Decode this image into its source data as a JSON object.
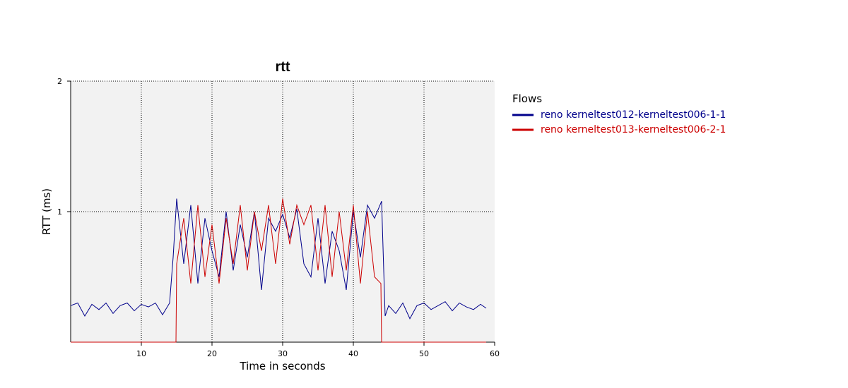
{
  "chart_data": {
    "type": "line",
    "title": "rtt",
    "xlabel": "Time in seconds",
    "ylabel": "RTT (ms)",
    "xlim": [
      0,
      60
    ],
    "ylim": [
      0,
      2
    ],
    "x_ticks": [
      "10",
      "20",
      "30",
      "40",
      "50",
      "60"
    ],
    "y_ticks": [
      "1",
      "2"
    ],
    "grid": true,
    "legend_title": "Flows",
    "legend_position": "right",
    "series": [
      {
        "name": "reno kerneltest012-kerneltest006-1-1",
        "color": "#00008b",
        "x": [
          0.0,
          1.0,
          2.0,
          3.0,
          4.0,
          5.0,
          6.0,
          7.0,
          8.0,
          9.0,
          10.0,
          11.0,
          12.0,
          13.0,
          14.0,
          14.5,
          15.0,
          16.0,
          17.0,
          18.0,
          19.0,
          20.0,
          21.0,
          22.0,
          23.0,
          24.0,
          25.0,
          26.0,
          27.0,
          28.0,
          29.0,
          30.0,
          31.0,
          32.0,
          33.0,
          34.0,
          35.0,
          36.0,
          37.0,
          38.0,
          39.0,
          40.0,
          41.0,
          42.0,
          43.0,
          44.0,
          44.5,
          45.0,
          46.0,
          47.0,
          48.0,
          49.0,
          50.0,
          51.0,
          52.0,
          53.0,
          54.0,
          55.0,
          56.0,
          57.0,
          58.0,
          58.8
        ],
        "y": [
          0.28,
          0.3,
          0.2,
          0.29,
          0.25,
          0.3,
          0.22,
          0.28,
          0.3,
          0.24,
          0.29,
          0.27,
          0.3,
          0.21,
          0.3,
          0.65,
          1.1,
          0.6,
          1.05,
          0.45,
          0.95,
          0.7,
          0.5,
          1.0,
          0.55,
          0.9,
          0.65,
          1.0,
          0.4,
          0.95,
          0.85,
          0.98,
          0.8,
          1.02,
          0.6,
          0.5,
          0.95,
          0.45,
          0.85,
          0.7,
          0.4,
          1.0,
          0.65,
          1.05,
          0.95,
          1.08,
          0.2,
          0.28,
          0.22,
          0.3,
          0.18,
          0.28,
          0.3,
          0.25,
          0.28,
          0.31,
          0.24,
          0.3,
          0.27,
          0.25,
          0.29,
          0.26
        ]
      },
      {
        "name": "reno kerneltest013-kerneltest006-2-1",
        "color": "#cc0000",
        "x": [
          0.0,
          14.9,
          15.0,
          16.0,
          17.0,
          18.0,
          19.0,
          20.0,
          21.0,
          22.0,
          23.0,
          24.0,
          25.0,
          26.0,
          27.0,
          28.0,
          29.0,
          30.0,
          31.0,
          32.0,
          33.0,
          34.0,
          35.0,
          36.0,
          37.0,
          38.0,
          39.0,
          40.0,
          41.0,
          42.0,
          43.0,
          43.9,
          44.0,
          58.8
        ],
        "y": [
          0.0,
          0.0,
          0.6,
          0.95,
          0.45,
          1.05,
          0.5,
          0.9,
          0.45,
          0.95,
          0.6,
          1.05,
          0.55,
          1.0,
          0.7,
          1.05,
          0.6,
          1.1,
          0.75,
          1.05,
          0.9,
          1.05,
          0.55,
          1.05,
          0.5,
          1.0,
          0.55,
          1.05,
          0.45,
          1.0,
          0.5,
          0.45,
          0.0,
          0.0
        ]
      }
    ]
  }
}
